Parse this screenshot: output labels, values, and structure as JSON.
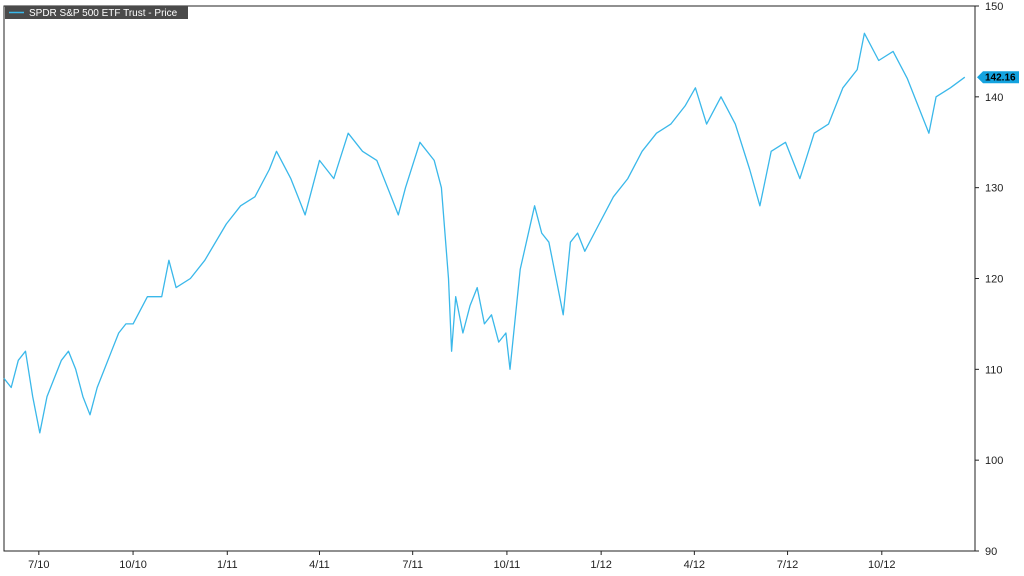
{
  "colors": {
    "series": "#3ab8ea",
    "legend_bg": "#4a4a4a",
    "axis": "#222222",
    "last_badge": "#14a3df"
  },
  "legend": {
    "label": "SPDR S&P 500 ETF Trust - Price",
    "placement": "top-left"
  },
  "last_value": {
    "label": "142.16",
    "value": 142.16
  },
  "chart_data": {
    "type": "line",
    "title": "",
    "xlabel": "",
    "ylabel": "",
    "ylim": [
      90,
      150
    ],
    "yticks": [
      90,
      100,
      110,
      120,
      130,
      140,
      150
    ],
    "ytick_labels": [
      "90",
      "100",
      "110",
      "120",
      "130",
      "140",
      "150"
    ],
    "xlim": [
      "2010-05-28",
      "2012-12-31"
    ],
    "xticks": [
      "2010-07-01",
      "2010-10-01",
      "2011-01-01",
      "2011-04-01",
      "2011-07-01",
      "2011-10-01",
      "2012-01-01",
      "2012-04-01",
      "2012-07-01",
      "2012-10-01"
    ],
    "xtick_labels": [
      "7/10",
      "10/10",
      "1/11",
      "4/11",
      "7/11",
      "10/11",
      "1/12",
      "4/12",
      "7/12",
      "10/12"
    ],
    "grid": false,
    "series": [
      {
        "name": "SPDR S&P 500 ETF Trust - Price",
        "x": [
          "2010-05-28",
          "2010-06-04",
          "2010-06-11",
          "2010-06-18",
          "2010-06-25",
          "2010-07-02",
          "2010-07-09",
          "2010-07-16",
          "2010-07-23",
          "2010-07-30",
          "2010-08-06",
          "2010-08-13",
          "2010-08-20",
          "2010-08-27",
          "2010-09-03",
          "2010-09-10",
          "2010-09-17",
          "2010-09-24",
          "2010-10-01",
          "2010-10-15",
          "2010-10-29",
          "2010-11-05",
          "2010-11-12",
          "2010-11-26",
          "2010-12-10",
          "2010-12-31",
          "2011-01-14",
          "2011-01-28",
          "2011-02-11",
          "2011-02-18",
          "2011-03-04",
          "2011-03-11",
          "2011-03-18",
          "2011-04-01",
          "2011-04-15",
          "2011-04-29",
          "2011-05-13",
          "2011-05-27",
          "2011-06-10",
          "2011-06-17",
          "2011-06-24",
          "2011-07-08",
          "2011-07-22",
          "2011-07-29",
          "2011-08-05",
          "2011-08-08",
          "2011-08-12",
          "2011-08-19",
          "2011-08-26",
          "2011-09-02",
          "2011-09-09",
          "2011-09-16",
          "2011-09-23",
          "2011-09-30",
          "2011-10-04",
          "2011-10-14",
          "2011-10-28",
          "2011-11-04",
          "2011-11-11",
          "2011-11-18",
          "2011-11-25",
          "2011-12-02",
          "2011-12-09",
          "2011-12-16",
          "2011-12-30",
          "2012-01-13",
          "2012-01-27",
          "2012-02-10",
          "2012-02-24",
          "2012-03-09",
          "2012-03-23",
          "2012-04-02",
          "2012-04-13",
          "2012-04-27",
          "2012-05-11",
          "2012-05-25",
          "2012-06-04",
          "2012-06-15",
          "2012-06-29",
          "2012-07-13",
          "2012-07-27",
          "2012-08-10",
          "2012-08-24",
          "2012-09-07",
          "2012-09-14",
          "2012-09-28",
          "2012-10-12",
          "2012-10-26",
          "2012-11-09",
          "2012-11-16",
          "2012-11-23",
          "2012-12-07",
          "2012-12-21"
        ],
        "values": [
          109,
          108,
          111,
          112,
          107,
          103,
          107,
          109,
          111,
          112,
          110,
          107,
          105,
          108,
          110,
          112,
          114,
          115,
          115,
          118,
          118,
          122,
          119,
          120,
          122,
          126,
          128,
          129,
          132,
          134,
          131,
          129,
          127,
          133,
          131,
          136,
          134,
          133,
          129,
          127,
          130,
          135,
          133,
          130,
          120,
          112,
          118,
          114,
          117,
          119,
          115,
          116,
          113,
          114,
          110,
          121,
          128,
          125,
          124,
          120,
          116,
          124,
          125,
          123,
          126,
          129,
          131,
          134,
          136,
          137,
          139,
          141,
          137,
          140,
          137,
          132,
          128,
          134,
          135,
          131,
          136,
          137,
          141,
          143,
          147,
          144,
          145,
          142,
          138,
          136,
          140,
          141,
          142.16
        ]
      }
    ]
  }
}
